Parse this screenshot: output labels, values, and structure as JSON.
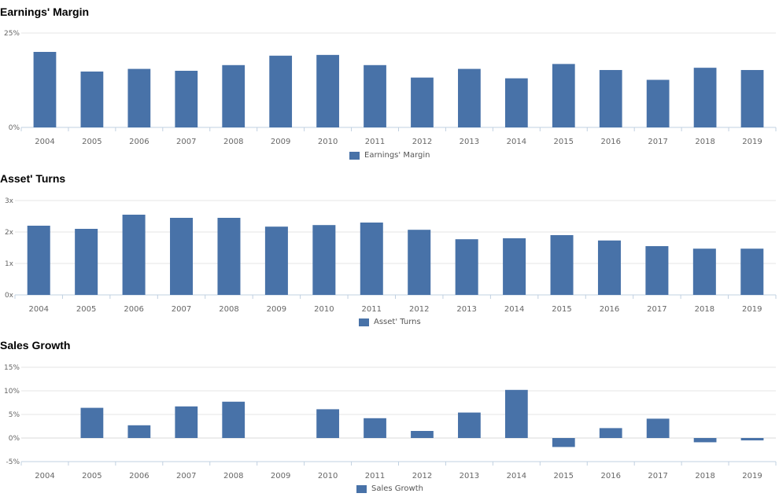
{
  "bar_color": "#4872a8",
  "grid_color": "#e6e6e6",
  "axis_color": "#c0d0e0",
  "chart_data": [
    {
      "type": "bar",
      "title": "Earnings' Margin",
      "categories": [
        "2004",
        "2005",
        "2006",
        "2007",
        "2008",
        "2009",
        "2010",
        "2011",
        "2012",
        "2013",
        "2014",
        "2015",
        "2016",
        "2017",
        "2018",
        "2019"
      ],
      "series": [
        {
          "name": "Earnings' Margin",
          "values": [
            20.0,
            14.8,
            15.5,
            15.0,
            16.5,
            19.0,
            19.2,
            16.5,
            13.2,
            15.5,
            13.0,
            16.8,
            15.2,
            12.6,
            15.8,
            15.2
          ]
        }
      ],
      "yticks": [
        "0%",
        "25%"
      ],
      "ytick_values": [
        0,
        25
      ],
      "ylim": [
        0,
        25
      ],
      "legend": "bottom-center"
    },
    {
      "type": "bar",
      "title": "Asset' Turns",
      "categories": [
        "2004",
        "2005",
        "2006",
        "2007",
        "2008",
        "2009",
        "2010",
        "2011",
        "2012",
        "2013",
        "2014",
        "2015",
        "2016",
        "2017",
        "2018",
        "2019"
      ],
      "series": [
        {
          "name": "Asset' Turns",
          "values": [
            2.2,
            2.1,
            2.55,
            2.45,
            2.45,
            2.17,
            2.22,
            2.3,
            2.07,
            1.77,
            1.8,
            1.9,
            1.73,
            1.55,
            1.47,
            1.47
          ]
        }
      ],
      "yticks": [
        "0x",
        "1x",
        "2x",
        "3x"
      ],
      "ytick_values": [
        0,
        1,
        2,
        3
      ],
      "ylim": [
        0,
        3
      ],
      "legend": "bottom-center"
    },
    {
      "type": "bar",
      "title": "Sales Growth",
      "categories": [
        "2004",
        "2005",
        "2006",
        "2007",
        "2008",
        "2009",
        "2010",
        "2011",
        "2012",
        "2013",
        "2014",
        "2015",
        "2016",
        "2017",
        "2018",
        "2019"
      ],
      "series": [
        {
          "name": "Sales Growth",
          "values": [
            null,
            6.4,
            2.7,
            6.7,
            7.7,
            null,
            6.1,
            4.2,
            1.5,
            5.4,
            10.2,
            -1.9,
            2.1,
            4.1,
            -0.9,
            -0.5
          ]
        }
      ],
      "yticks": [
        "-5%",
        "0%",
        "5%",
        "10%",
        "15%"
      ],
      "ytick_values": [
        -5,
        0,
        5,
        10,
        15
      ],
      "ylim": [
        -5,
        15
      ],
      "legend": "bottom-center"
    }
  ]
}
